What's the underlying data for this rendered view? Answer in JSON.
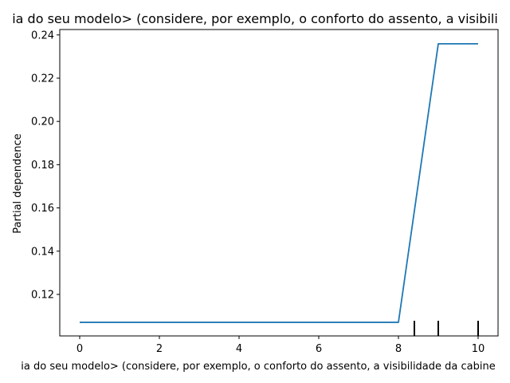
{
  "chart_data": {
    "type": "line",
    "title": "ia do seu modelo>  (considere, por exemplo, o conforto do assento, a visibili",
    "xlabel": "ia do seu modelo>  (considere, por exemplo, o conforto do assento, a visibilidade da cabine",
    "ylabel": "Partial dependence",
    "xlim": [
      -0.5,
      10.5
    ],
    "ylim": [
      0.1008,
      0.2425
    ],
    "xticks": [
      0,
      2,
      4,
      6,
      8,
      10
    ],
    "xtick_labels": [
      "0",
      "2",
      "4",
      "6",
      "8",
      "10"
    ],
    "yticks": [
      0.12,
      0.14,
      0.16,
      0.18,
      0.2,
      0.22,
      0.24
    ],
    "ytick_labels": [
      "0.12",
      "0.14",
      "0.16",
      "0.18",
      "0.20",
      "0.22",
      "0.24"
    ],
    "grid": false,
    "series": [
      {
        "color": "#1f77b4",
        "x": [
          0,
          8,
          9,
          10
        ],
        "y": [
          0.1071,
          0.1071,
          0.2359,
          0.2359
        ]
      }
    ],
    "rug_x": [
      8.4,
      9,
      10
    ],
    "rug_color": "#000000"
  }
}
